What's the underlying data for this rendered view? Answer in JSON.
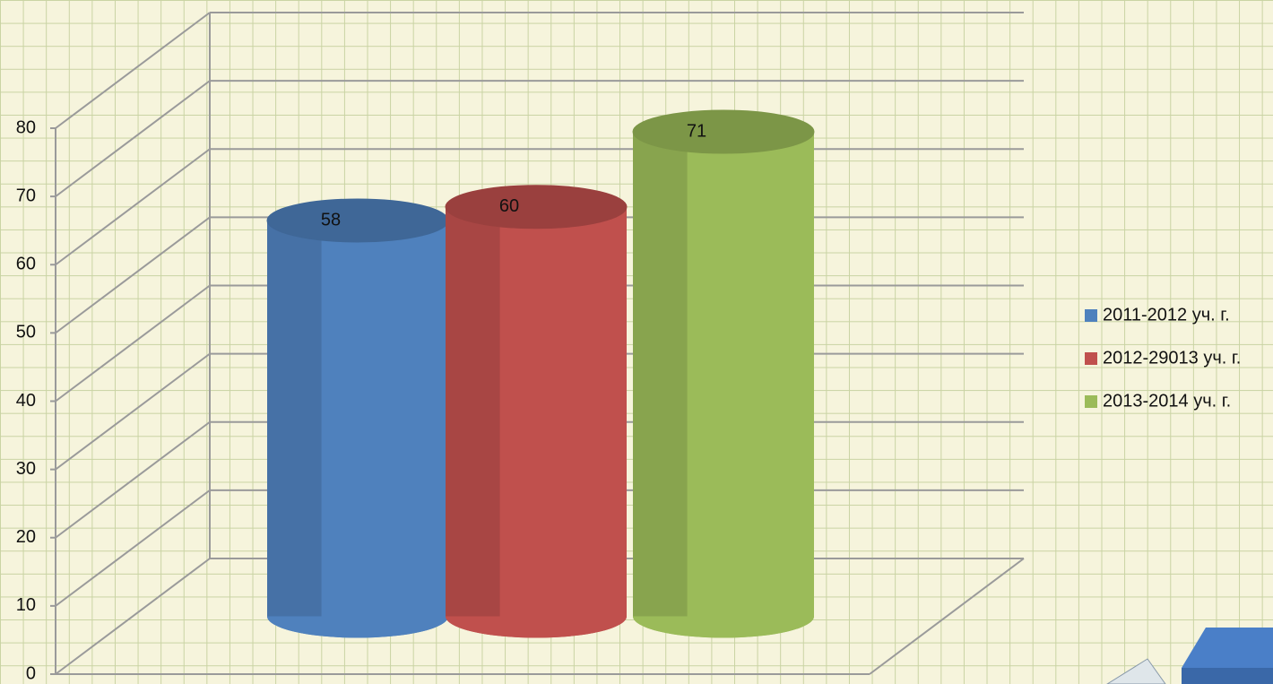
{
  "chart_data": {
    "type": "bar",
    "categories": [
      null
    ],
    "series": [
      {
        "name": "2011-2012 уч. г.",
        "color": "#4f81bd",
        "values": [
          58
        ]
      },
      {
        "name": "2012-29013 уч. г.",
        "color": "#c0504d",
        "values": [
          60
        ]
      },
      {
        "name": "2013-2014 уч. г.",
        "color": "#9bbb59",
        "values": [
          71
        ]
      }
    ],
    "ylim": [
      0,
      80
    ],
    "yticks": [
      0,
      10,
      20,
      30,
      40,
      50,
      60,
      70,
      80
    ],
    "grid": true,
    "legend": "right"
  }
}
